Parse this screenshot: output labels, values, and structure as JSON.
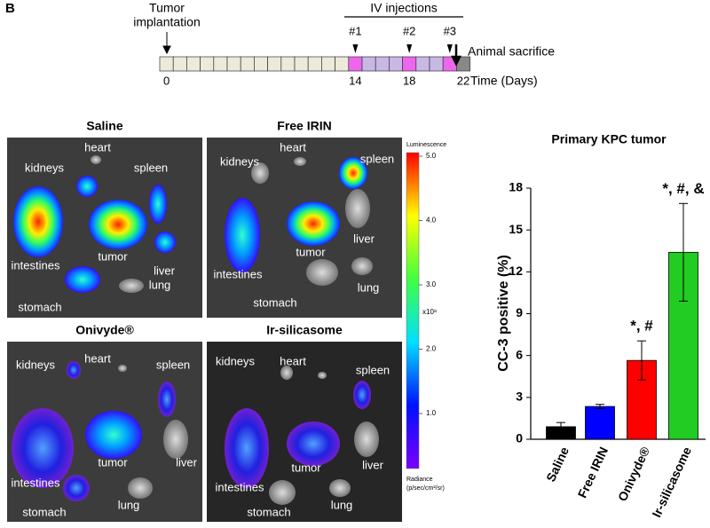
{
  "panel_label": "B",
  "timeline": {
    "start_label": "Tumor",
    "start_label_2": "implantation",
    "injections_label": "IV injections",
    "injections": [
      "#1",
      "#2",
      "#3"
    ],
    "end_label": "Animal sacrifice",
    "axis_label": "Time (Days)",
    "ticks": [
      0,
      14,
      18,
      22
    ]
  },
  "images": [
    {
      "title": "Saline",
      "labels": [
        "kidneys",
        "heart",
        "spleen",
        "intestines",
        "tumor",
        "liver",
        "stomach",
        "lung"
      ]
    },
    {
      "title": "Free IRIN",
      "labels": [
        "kidneys",
        "heart",
        "spleen",
        "intestines",
        "tumor",
        "liver",
        "stomach",
        "lung"
      ]
    },
    {
      "title": "Onivyde®",
      "labels": [
        "kidneys",
        "heart",
        "spleen",
        "intestines",
        "tumor",
        "liver",
        "stomach",
        "lung"
      ]
    },
    {
      "title": "Ir-silicasome",
      "labels": [
        "kidneys",
        "heart",
        "spleen",
        "intestines",
        "tumor",
        "liver",
        "stomach",
        "lung"
      ]
    }
  ],
  "colorbar": {
    "title": "Luminescence",
    "scale": "x10⁸",
    "unit": "Radiance",
    "unit_2": "(p/sec/cm²/sr)",
    "ticks": [
      {
        "value": 5,
        "label": "5.0"
      },
      {
        "value": 4,
        "label": "4.0"
      },
      {
        "value": 3,
        "label": "3.0"
      },
      {
        "value": 2,
        "label": "2.0"
      },
      {
        "value": 1,
        "label": "1.0"
      }
    ]
  },
  "chart_data": {
    "type": "bar",
    "title": "Primary KPC tumor",
    "y_label": "CC-3 positive (%)",
    "categories": [
      "Saline",
      "Free IRIN",
      "Onivyde®",
      "Ir-silicasome"
    ],
    "values": [
      0.9,
      2.35,
      5.65,
      13.4
    ],
    "errors": [
      0.3,
      0.15,
      1.4,
      3.5
    ],
    "colors": [
      "#000000",
      "#0000ff",
      "#ff0000",
      "#22cc22"
    ],
    "annotations": [
      {
        "text": "*, #",
        "category": "Onivyde®"
      },
      {
        "text": "*, #, &",
        "category": "Ir-silicasome"
      }
    ],
    "ylim": [
      0,
      18
    ],
    "yticks": [
      0,
      3,
      6,
      9,
      12,
      15,
      18
    ]
  }
}
